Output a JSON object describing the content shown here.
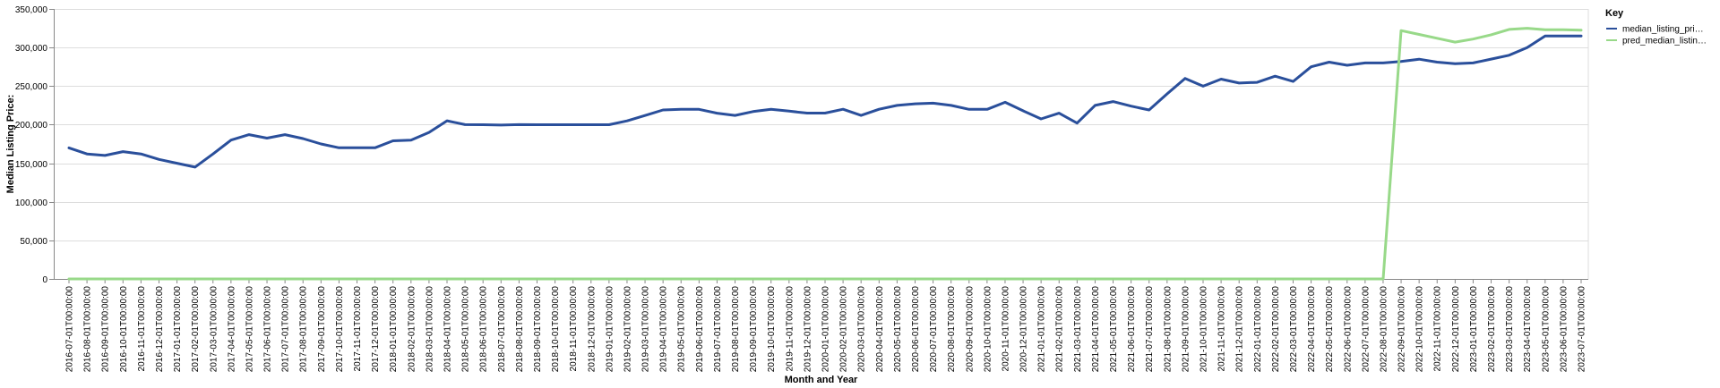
{
  "chart_data": {
    "type": "line",
    "xlabel": "Month and Year",
    "ylabel": "Median Listing Price:",
    "ylim": [
      0,
      350000
    ],
    "y_ticks": [
      0,
      50000,
      100000,
      150000,
      200000,
      250000,
      300000,
      350000
    ],
    "y_tick_labels": [
      "0",
      "50,000",
      "100,000",
      "150,000",
      "200,000",
      "250,000",
      "300,000",
      "350,000"
    ],
    "grid": "horizontal",
    "legend": {
      "title": "Key",
      "placement": "right",
      "entries": [
        "median_listing_pri…",
        "pred_median_listin…"
      ]
    },
    "x": [
      "2016-07-01T00:00:00",
      "2016-08-01T00:00:00",
      "2016-09-01T00:00:00",
      "2016-10-01T00:00:00",
      "2016-11-01T00:00:00",
      "2016-12-01T00:00:00",
      "2017-01-01T00:00:00",
      "2017-02-01T00:00:00",
      "2017-03-01T00:00:00",
      "2017-04-01T00:00:00",
      "2017-05-01T00:00:00",
      "2017-06-01T00:00:00",
      "2017-07-01T00:00:00",
      "2017-08-01T00:00:00",
      "2017-09-01T00:00:00",
      "2017-10-01T00:00:00",
      "2017-11-01T00:00:00",
      "2017-12-01T00:00:00",
      "2018-01-01T00:00:00",
      "2018-02-01T00:00:00",
      "2018-03-01T00:00:00",
      "2018-04-01T00:00:00",
      "2018-05-01T00:00:00",
      "2018-06-01T00:00:00",
      "2018-07-01T00:00:00",
      "2018-08-01T00:00:00",
      "2018-09-01T00:00:00",
      "2018-10-01T00:00:00",
      "2018-11-01T00:00:00",
      "2018-12-01T00:00:00",
      "2019-01-01T00:00:00",
      "2019-02-01T00:00:00",
      "2019-03-01T00:00:00",
      "2019-04-01T00:00:00",
      "2019-05-01T00:00:00",
      "2019-06-01T00:00:00",
      "2019-07-01T00:00:00",
      "2019-08-01T00:00:00",
      "2019-09-01T00:00:00",
      "2019-10-01T00:00:00",
      "2019-11-01T00:00:00",
      "2019-12-01T00:00:00",
      "2020-01-01T00:00:00",
      "2020-02-01T00:00:00",
      "2020-03-01T00:00:00",
      "2020-04-01T00:00:00",
      "2020-05-01T00:00:00",
      "2020-06-01T00:00:00",
      "2020-07-01T00:00:00",
      "2020-08-01T00:00:00",
      "2020-09-01T00:00:00",
      "2020-10-01T00:00:00",
      "2020-11-01T00:00:00",
      "2020-12-01T00:00:00",
      "2021-01-01T00:00:00",
      "2021-02-01T00:00:00",
      "2021-03-01T00:00:00",
      "2021-04-01T00:00:00",
      "2021-05-01T00:00:00",
      "2021-06-01T00:00:00",
      "2021-07-01T00:00:00",
      "2021-08-01T00:00:00",
      "2021-09-01T00:00:00",
      "2021-10-01T00:00:00",
      "2021-11-01T00:00:00",
      "2021-12-01T00:00:00",
      "2022-01-01T00:00:00",
      "2022-02-01T00:00:00",
      "2022-03-01T00:00:00",
      "2022-04-01T00:00:00",
      "2022-05-01T00:00:00",
      "2022-06-01T00:00:00",
      "2022-07-01T00:00:00",
      "2022-08-01T00:00:00",
      "2022-09-01T00:00:00",
      "2022-10-01T00:00:00",
      "2022-11-01T00:00:00",
      "2022-12-01T00:00:00",
      "2023-01-01T00:00:00",
      "2023-02-01T00:00:00",
      "2023-03-01T00:00:00",
      "2023-04-01T00:00:00",
      "2023-05-01T00:00:00",
      "2023-06-01T00:00:00",
      "2023-07-01T00:00:00"
    ],
    "series": [
      {
        "name": "median_listing_pri…",
        "color": "#2a4f9b",
        "values": [
          169900,
          162000,
          160000,
          165000,
          162000,
          155000,
          150000,
          145000,
          162000,
          180000,
          187000,
          182500,
          187000,
          182000,
          175000,
          170000,
          170000,
          170000,
          179000,
          179900,
          190000,
          205000,
          200000,
          199900,
          199500,
          200000,
          199900,
          199900,
          199900,
          199900,
          199900,
          204900,
          211900,
          219000,
          220000,
          219900,
          214900,
          212000,
          217000,
          220000,
          217500,
          215000,
          215000,
          220000,
          212000,
          220000,
          224900,
          227000,
          227900,
          225000,
          219900,
          219900,
          229000,
          218000,
          207500,
          214900,
          202000,
          224900,
          229900,
          224000,
          219000,
          239900,
          259900,
          249900,
          259000,
          253900,
          254900,
          262900,
          256000,
          275000,
          281000,
          277000,
          280000,
          280000,
          282000,
          284900,
          281000,
          279000,
          280000,
          285000,
          290000,
          299900,
          315000,
          315000,
          315000
        ]
      },
      {
        "name": "pred_median_listin…",
        "color": "#98d989",
        "values": [
          0,
          0,
          0,
          0,
          0,
          0,
          0,
          0,
          0,
          0,
          0,
          0,
          0,
          0,
          0,
          0,
          0,
          0,
          0,
          0,
          0,
          0,
          0,
          0,
          0,
          0,
          0,
          0,
          0,
          0,
          0,
          0,
          0,
          0,
          0,
          0,
          0,
          0,
          0,
          0,
          0,
          0,
          0,
          0,
          0,
          0,
          0,
          0,
          0,
          0,
          0,
          0,
          0,
          0,
          0,
          0,
          0,
          0,
          0,
          0,
          0,
          0,
          0,
          0,
          0,
          0,
          0,
          0,
          0,
          0,
          0,
          0,
          0,
          0,
          322000,
          317000,
          312000,
          307000,
          311000,
          316500,
          323500,
          325000,
          323000,
          323000,
          322500
        ]
      }
    ]
  }
}
